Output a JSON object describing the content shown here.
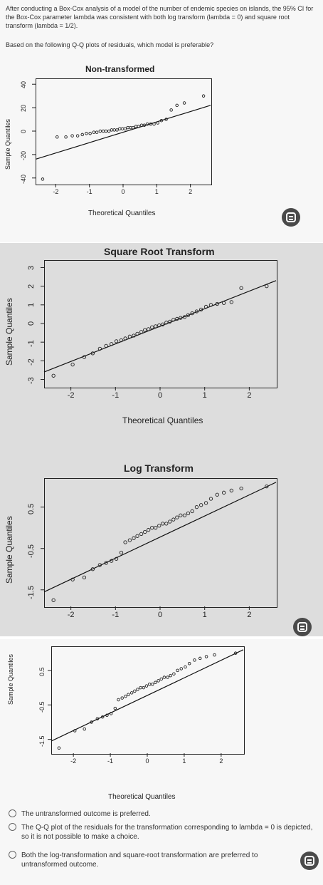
{
  "question": {
    "text": "After conducting a Box-Cox analysis of a model of the number of endemic species on islands, the 95% CI for the Box-Cox parameter lambda was consistent with both log transform (lambda = 0) and square root transform (lambda = 1/2).",
    "prompt": "Based on the following Q-Q plots of residuals, which model is preferable?"
  },
  "plots": [
    {
      "title": "Non-transformed",
      "ylabel": "Sample Quantiles",
      "xlabel": "Theoretical Quantiles",
      "xticks": [
        "-2",
        "-1",
        "0",
        "1",
        "2"
      ],
      "yticks": [
        "-40",
        "-20",
        "0",
        "20",
        "40"
      ]
    },
    {
      "title": "Square Root Transform",
      "ylabel": "Sample Quantiles",
      "xlabel": "Theoretical Quantiles",
      "xticks": [
        "-2",
        "-1",
        "0",
        "1",
        "2"
      ],
      "yticks": [
        "-3",
        "-2",
        "-1",
        "0",
        "1",
        "2",
        "3"
      ]
    },
    {
      "title": "Log Transform",
      "ylabel": "Sample Quantiles",
      "xlabel": "",
      "xticks": [
        "-2",
        "-1",
        "0",
        "1",
        "2"
      ],
      "yticks": [
        "-1.5",
        "-0.5",
        "0.5"
      ]
    },
    {
      "title": "",
      "ylabel": "Sample Quantiles",
      "xlabel": "Theoretical Quantiles",
      "xticks": [
        "-2",
        "-1",
        "0",
        "1",
        "2"
      ],
      "yticks": [
        "-1.5",
        "-0.5",
        "0.5"
      ]
    }
  ],
  "options": [
    "The untransformed outcome is preferred.",
    "The Q-Q plot of the residuals for the transformation corresponding to lambda = 0 is depicted, so it is not possible to make a choice.",
    "Both the log-transformation and square-root transformation are preferred to untransformed outcome."
  ],
  "icons": {
    "lens": "google-lens-icon"
  },
  "chart_data": [
    {
      "type": "scatter",
      "title": "Non-transformed",
      "xlabel": "Theoretical Quantiles",
      "ylabel": "Sample Quantiles",
      "xlim": [
        -2.6,
        2.6
      ],
      "ylim": [
        -45,
        45
      ],
      "x": [
        -2.39,
        -1.96,
        -1.7,
        -1.51,
        -1.35,
        -1.21,
        -1.09,
        -0.98,
        -0.87,
        -0.78,
        -0.68,
        -0.59,
        -0.51,
        -0.42,
        -0.34,
        -0.26,
        -0.18,
        -0.1,
        -0.02,
        0.06,
        0.14,
        0.22,
        0.3,
        0.38,
        0.46,
        0.55,
        0.63,
        0.72,
        0.82,
        0.92,
        1.03,
        1.14,
        1.28,
        1.43,
        1.6,
        1.82,
        2.39
      ],
      "y": [
        -41,
        -5,
        -5,
        -4,
        -4,
        -3,
        -2,
        -2,
        -1,
        -1,
        0,
        0,
        0,
        0,
        1,
        1,
        1,
        2,
        2,
        2,
        3,
        3,
        3,
        4,
        4,
        5,
        5,
        6,
        6,
        6,
        7,
        9,
        10,
        18,
        22,
        24,
        30
      ],
      "reference_line": {
        "x": [
          -2.6,
          2.6
        ],
        "y": [
          -24,
          22
        ]
      }
    },
    {
      "type": "scatter",
      "title": "Square Root Transform",
      "xlabel": "Theoretical Quantiles",
      "ylabel": "Sample Quantiles",
      "xlim": [
        -2.6,
        2.6
      ],
      "ylim": [
        -3.4,
        3.4
      ],
      "x": [
        -2.39,
        -1.96,
        -1.7,
        -1.51,
        -1.35,
        -1.21,
        -1.09,
        -0.98,
        -0.87,
        -0.78,
        -0.68,
        -0.59,
        -0.51,
        -0.42,
        -0.34,
        -0.26,
        -0.18,
        -0.1,
        -0.02,
        0.06,
        0.14,
        0.22,
        0.3,
        0.38,
        0.46,
        0.55,
        0.63,
        0.72,
        0.82,
        0.92,
        1.03,
        1.14,
        1.28,
        1.43,
        1.6,
        1.82,
        2.39
      ],
      "y": [
        -2.8,
        -2.2,
        -1.8,
        -1.6,
        -1.35,
        -1.2,
        -1.1,
        -0.95,
        -0.9,
        -0.8,
        -0.7,
        -0.65,
        -0.55,
        -0.45,
        -0.35,
        -0.3,
        -0.2,
        -0.15,
        -0.1,
        -0.05,
        0.05,
        0.1,
        0.2,
        0.25,
        0.3,
        0.35,
        0.45,
        0.55,
        0.65,
        0.75,
        0.9,
        1.0,
        1.05,
        1.1,
        1.15,
        1.9,
        2.0
      ],
      "reference_line": {
        "x": [
          -2.6,
          2.6
        ],
        "y": [
          -2.6,
          2.3
        ]
      }
    },
    {
      "type": "scatter",
      "title": "Log Transform",
      "xlabel": "",
      "ylabel": "Sample Quantiles",
      "xlim": [
        -2.6,
        2.6
      ],
      "ylim": [
        -1.9,
        1.2
      ],
      "x": [
        -2.39,
        -1.96,
        -1.7,
        -1.51,
        -1.35,
        -1.21,
        -1.09,
        -0.98,
        -0.87,
        -0.78,
        -0.68,
        -0.59,
        -0.51,
        -0.42,
        -0.34,
        -0.26,
        -0.18,
        -0.1,
        -0.02,
        0.06,
        0.14,
        0.22,
        0.3,
        0.38,
        0.46,
        0.55,
        0.63,
        0.72,
        0.82,
        0.92,
        1.03,
        1.14,
        1.28,
        1.43,
        1.6,
        1.82,
        2.39
      ],
      "y": [
        -1.75,
        -1.25,
        -1.2,
        -1.0,
        -0.9,
        -0.85,
        -0.8,
        -0.75,
        -0.6,
        -0.35,
        -0.3,
        -0.25,
        -0.2,
        -0.15,
        -0.1,
        -0.05,
        0.0,
        0.0,
        0.05,
        0.1,
        0.1,
        0.15,
        0.2,
        0.25,
        0.3,
        0.3,
        0.35,
        0.4,
        0.5,
        0.55,
        0.6,
        0.7,
        0.8,
        0.85,
        0.9,
        0.95,
        1.0
      ],
      "reference_line": {
        "x": [
          -2.6,
          2.6
        ],
        "y": [
          -1.55,
          1.1
        ]
      }
    },
    {
      "type": "scatter",
      "title": "",
      "xlabel": "Theoretical Quantiles",
      "ylabel": "Sample Quantiles",
      "xlim": [
        -2.6,
        2.6
      ],
      "ylim": [
        -1.9,
        1.2
      ],
      "x": [
        -2.39,
        -1.96,
        -1.7,
        -1.51,
        -1.35,
        -1.21,
        -1.09,
        -0.98,
        -0.87,
        -0.78,
        -0.68,
        -0.59,
        -0.51,
        -0.42,
        -0.34,
        -0.26,
        -0.18,
        -0.1,
        -0.02,
        0.06,
        0.14,
        0.22,
        0.3,
        0.38,
        0.46,
        0.55,
        0.63,
        0.72,
        0.82,
        0.92,
        1.03,
        1.14,
        1.28,
        1.43,
        1.6,
        1.82,
        2.39
      ],
      "y": [
        -1.75,
        -1.25,
        -1.2,
        -1.0,
        -0.9,
        -0.85,
        -0.8,
        -0.75,
        -0.6,
        -0.35,
        -0.3,
        -0.25,
        -0.2,
        -0.15,
        -0.1,
        -0.05,
        0.0,
        0.0,
        0.05,
        0.1,
        0.1,
        0.15,
        0.2,
        0.25,
        0.3,
        0.3,
        0.35,
        0.4,
        0.5,
        0.55,
        0.6,
        0.7,
        0.8,
        0.85,
        0.9,
        0.95,
        1.0
      ],
      "reference_line": {
        "x": [
          -2.6,
          2.6
        ],
        "y": [
          -1.55,
          1.1
        ]
      }
    }
  ]
}
